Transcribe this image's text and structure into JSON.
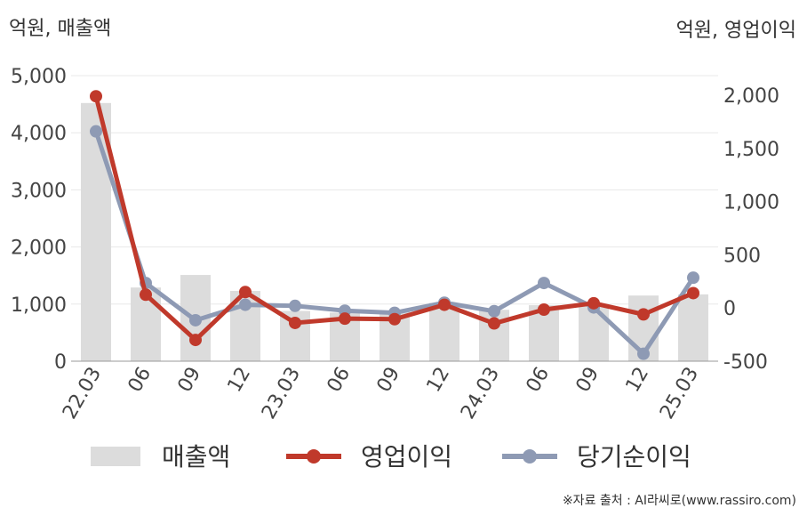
{
  "chart_data": {
    "type": "bar+line",
    "left_unit": "억원, 매출액",
    "right_unit": "억원, 영업이익",
    "categories": [
      "22.03",
      "06",
      "09",
      "12",
      "23.03",
      "06",
      "09",
      "12",
      "24.03",
      "06",
      "09",
      "12",
      "25.03"
    ],
    "y_left": {
      "ticks": [
        "0",
        "1,000",
        "2,000",
        "3,000",
        "4,000",
        "5,000"
      ],
      "range": [
        0,
        5000
      ]
    },
    "y_right": {
      "ticks": [
        "-500",
        "0",
        "500",
        "1,000",
        "1,500",
        "2,000"
      ],
      "range": [
        -500,
        2000
      ]
    },
    "series": [
      {
        "name": "매출액",
        "type": "bar",
        "axis": "left",
        "color": "#dcdcdc",
        "values": [
          4520,
          1290,
          1510,
          1230,
          880,
          850,
          870,
          1020,
          900,
          980,
          990,
          1150,
          1170
        ]
      },
      {
        "name": "영업이익",
        "type": "line",
        "axis": "right",
        "color": "#c0392b",
        "values": [
          1990,
          125,
          -300,
          150,
          -140,
          -100,
          -105,
          30,
          -145,
          -15,
          45,
          -60,
          140
        ]
      },
      {
        "name": "당기순이익",
        "type": "line",
        "axis": "right",
        "color": "#8e9ab4",
        "values": [
          1660,
          235,
          -115,
          30,
          20,
          -25,
          -45,
          50,
          -30,
          235,
          5,
          -430,
          285
        ]
      }
    ]
  },
  "legend": [
    {
      "label": "매출액",
      "kind": "bar",
      "color": "#dcdcdc"
    },
    {
      "label": "영업이익",
      "kind": "line",
      "color": "#c0392b"
    },
    {
      "label": "당기순이익",
      "kind": "line",
      "color": "#8e9ab4"
    }
  ],
  "source": "※자료 출처 : AI라씨로(www.rassiro.com)"
}
